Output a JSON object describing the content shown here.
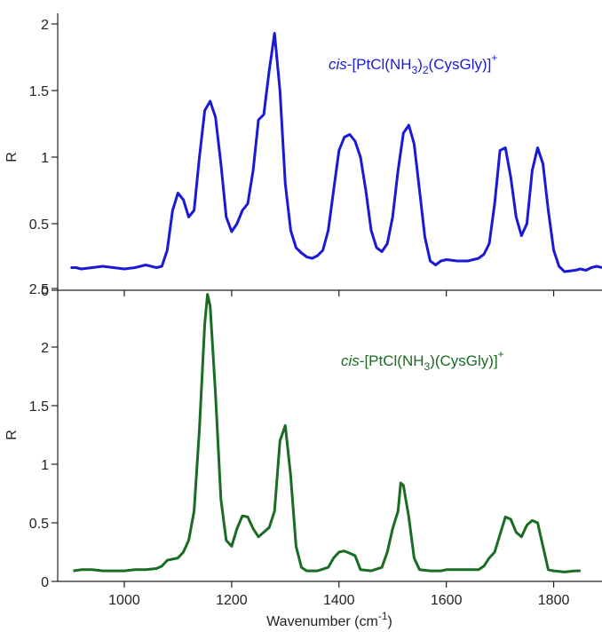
{
  "chart_data": [
    {
      "type": "line",
      "ylabel": "R",
      "color": "#1a1ad6",
      "annotation": [
        "cis",
        "-[PtCl(NH",
        "3",
        ")",
        "2",
        "(CysGly)]",
        "+"
      ],
      "x": [
        900,
        910,
        920,
        940,
        960,
        980,
        1000,
        1020,
        1040,
        1050,
        1060,
        1070,
        1080,
        1090,
        1100,
        1110,
        1120,
        1130,
        1140,
        1150,
        1160,
        1170,
        1180,
        1190,
        1200,
        1210,
        1220,
        1230,
        1240,
        1250,
        1260,
        1270,
        1280,
        1290,
        1300,
        1310,
        1320,
        1330,
        1340,
        1350,
        1360,
        1370,
        1380,
        1390,
        1400,
        1410,
        1420,
        1430,
        1440,
        1450,
        1460,
        1470,
        1480,
        1490,
        1500,
        1510,
        1520,
        1530,
        1540,
        1550,
        1560,
        1570,
        1580,
        1590,
        1600,
        1620,
        1640,
        1660,
        1670,
        1680,
        1690,
        1700,
        1710,
        1720,
        1730,
        1740,
        1750,
        1760,
        1770,
        1780,
        1790,
        1800,
        1810,
        1820,
        1840,
        1850,
        1860,
        1870,
        1880,
        1890
      ],
      "values": [
        0.17,
        0.17,
        0.16,
        0.17,
        0.18,
        0.17,
        0.16,
        0.17,
        0.19,
        0.18,
        0.17,
        0.18,
        0.3,
        0.6,
        0.73,
        0.68,
        0.55,
        0.6,
        1.0,
        1.35,
        1.42,
        1.3,
        0.95,
        0.55,
        0.44,
        0.5,
        0.6,
        0.65,
        0.9,
        1.28,
        1.32,
        1.65,
        1.93,
        1.5,
        0.8,
        0.45,
        0.32,
        0.28,
        0.25,
        0.24,
        0.26,
        0.3,
        0.45,
        0.75,
        1.05,
        1.15,
        1.17,
        1.12,
        1.0,
        0.75,
        0.45,
        0.32,
        0.29,
        0.35,
        0.55,
        0.9,
        1.18,
        1.24,
        1.1,
        0.75,
        0.4,
        0.22,
        0.19,
        0.22,
        0.23,
        0.22,
        0.22,
        0.24,
        0.27,
        0.35,
        0.65,
        1.05,
        1.07,
        0.85,
        0.55,
        0.41,
        0.5,
        0.9,
        1.07,
        0.95,
        0.6,
        0.3,
        0.18,
        0.14,
        0.15,
        0.16,
        0.15,
        0.17,
        0.18,
        0.17
      ],
      "xlim": [
        876,
        1890
      ],
      "xticks": [
        1000,
        1200,
        1400,
        1600,
        1800
      ],
      "ylim": [
        0,
        2
      ],
      "yticks": [
        0,
        0.5,
        1,
        1.5,
        2
      ]
    },
    {
      "type": "line",
      "ylabel": "R",
      "color": "#1a6b24",
      "annotation": [
        "cis",
        "-[PtCl(NH",
        "3",
        ")(CysGly)]",
        "+"
      ],
      "xlabel": [
        "Wavenumber (cm",
        "-1",
        ")"
      ],
      "x": [
        905,
        920,
        940,
        960,
        980,
        1000,
        1020,
        1040,
        1060,
        1070,
        1080,
        1090,
        1100,
        1110,
        1120,
        1130,
        1140,
        1150,
        1155,
        1160,
        1170,
        1180,
        1190,
        1200,
        1210,
        1220,
        1230,
        1240,
        1250,
        1260,
        1270,
        1280,
        1290,
        1300,
        1310,
        1320,
        1330,
        1340,
        1360,
        1380,
        1390,
        1400,
        1410,
        1420,
        1430,
        1440,
        1460,
        1480,
        1490,
        1500,
        1510,
        1515,
        1520,
        1530,
        1540,
        1550,
        1570,
        1590,
        1600,
        1620,
        1640,
        1660,
        1670,
        1680,
        1690,
        1700,
        1710,
        1720,
        1730,
        1740,
        1750,
        1760,
        1770,
        1780,
        1790,
        1800,
        1820,
        1840,
        1850
      ],
      "values": [
        0.09,
        0.1,
        0.1,
        0.09,
        0.09,
        0.09,
        0.1,
        0.1,
        0.11,
        0.13,
        0.18,
        0.19,
        0.2,
        0.25,
        0.35,
        0.6,
        1.3,
        2.2,
        2.45,
        2.35,
        1.6,
        0.7,
        0.35,
        0.3,
        0.45,
        0.56,
        0.55,
        0.45,
        0.38,
        0.42,
        0.46,
        0.6,
        1.2,
        1.33,
        0.9,
        0.3,
        0.12,
        0.09,
        0.09,
        0.12,
        0.2,
        0.25,
        0.26,
        0.24,
        0.22,
        0.1,
        0.09,
        0.12,
        0.25,
        0.45,
        0.6,
        0.84,
        0.82,
        0.55,
        0.2,
        0.1,
        0.09,
        0.09,
        0.1,
        0.1,
        0.1,
        0.1,
        0.13,
        0.2,
        0.25,
        0.4,
        0.55,
        0.53,
        0.42,
        0.38,
        0.48,
        0.52,
        0.5,
        0.3,
        0.1,
        0.09,
        0.08,
        0.09,
        0.09
      ],
      "xlim": [
        876,
        1890
      ],
      "xticks": [
        1000,
        1200,
        1400,
        1600,
        1800
      ],
      "ylim": [
        0,
        2.5
      ],
      "yticks": [
        0,
        0.5,
        1,
        1.5,
        2,
        2.5
      ]
    }
  ]
}
